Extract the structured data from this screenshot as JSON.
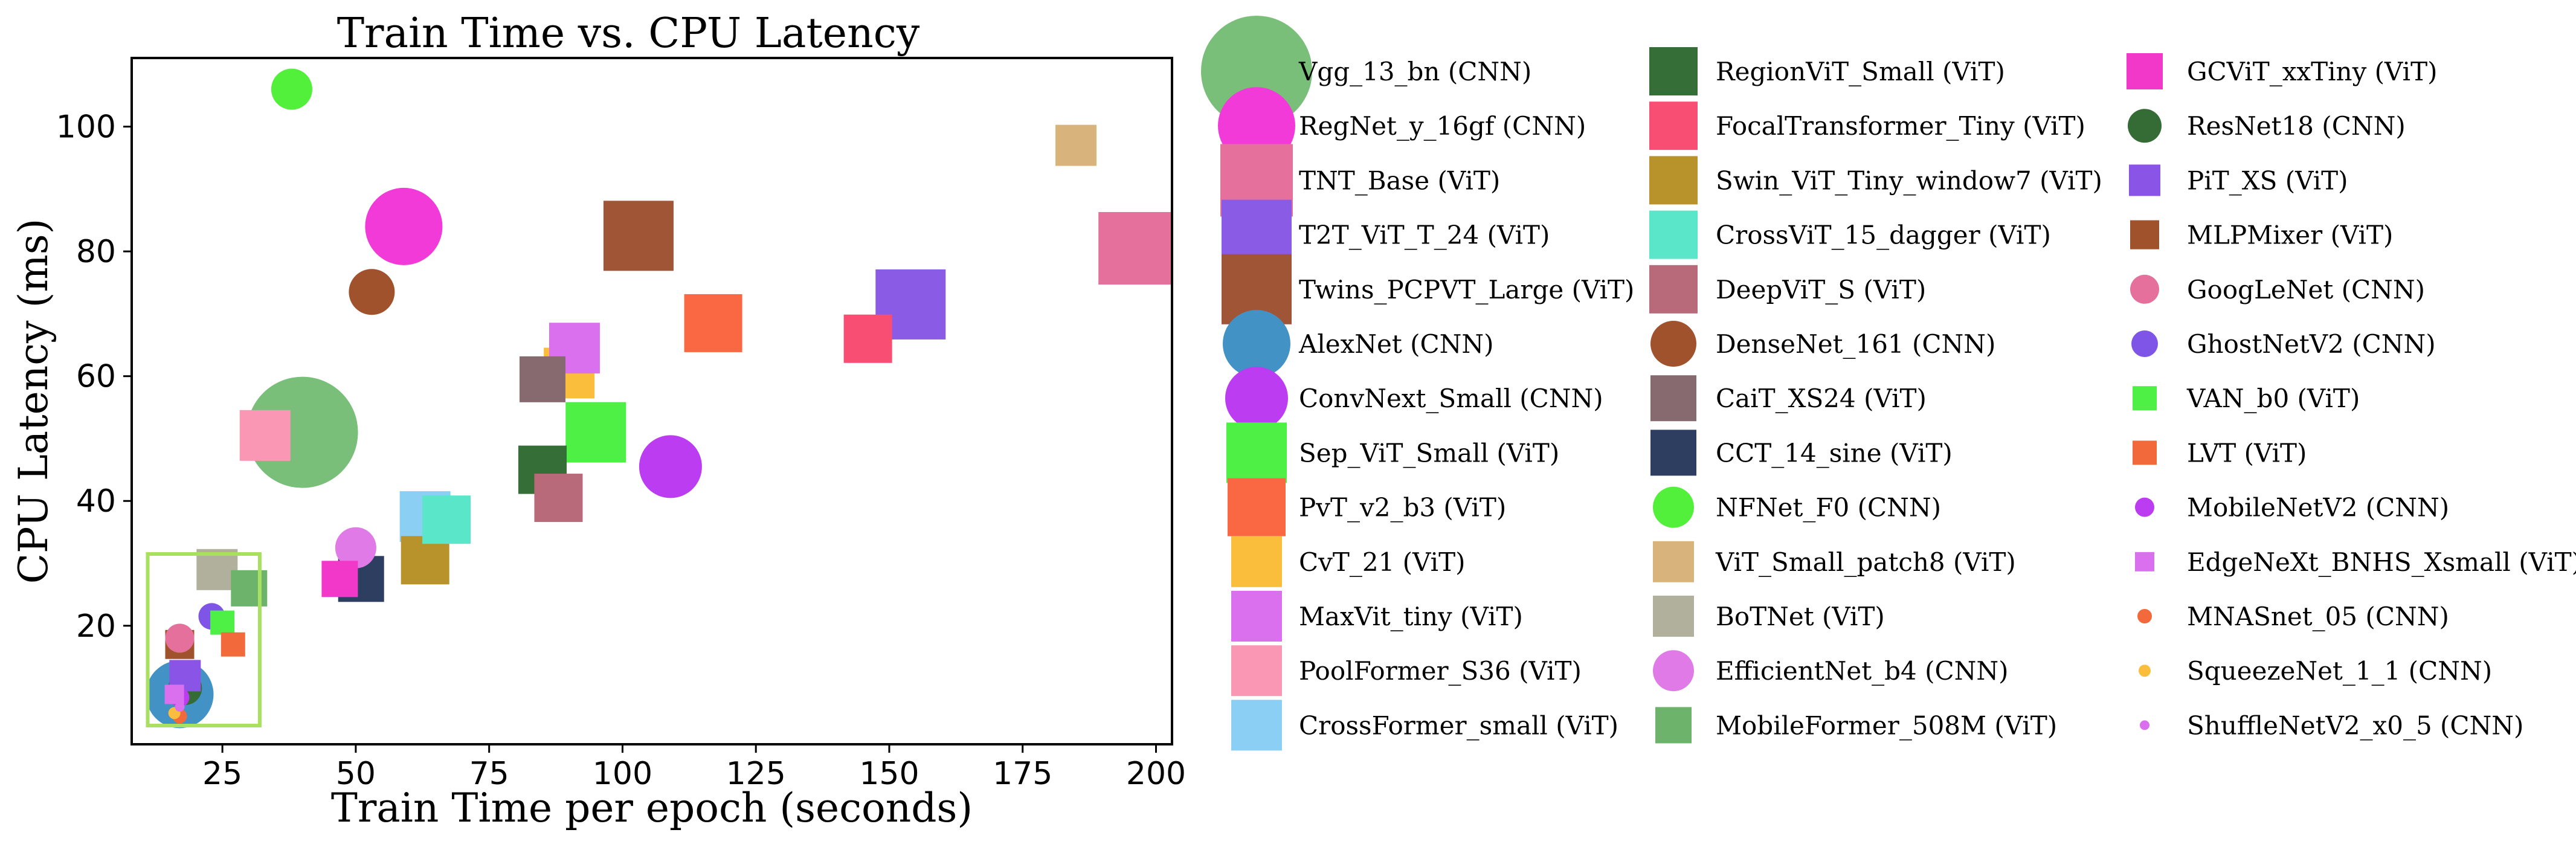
{
  "chart_data": {
    "type": "scatter",
    "title": "Train Time vs. CPU Latency",
    "xlabel": "Train Time per epoch (seconds)",
    "ylabel": "CPU Latency (ms)",
    "xlim": [
      8,
      203
    ],
    "ylim": [
      1,
      111
    ],
    "xticks": [
      25,
      50,
      75,
      100,
      125,
      150,
      175,
      200
    ],
    "yticks": [
      20,
      40,
      60,
      80,
      100
    ],
    "grid": false,
    "legend_position": "right, outside plot, 3 columns",
    "highlight_box": {
      "x": [
        11,
        32
      ],
      "y": [
        4,
        31.5
      ],
      "color": "#a8e05f"
    },
    "series": [
      {
        "name": "Vgg_13_bn (CNN)",
        "marker": "circle",
        "color": "#79bf79",
        "size": 4.6,
        "x": 40,
        "y": 51
      },
      {
        "name": "RegNet_y_16gf (CNN)",
        "marker": "circle",
        "color": "#f23ad8",
        "size": 3.2,
        "x": 59,
        "y": 84
      },
      {
        "name": "TNT_Base (ViT)",
        "marker": "square",
        "color": "#e5709b",
        "size": 3.0,
        "x": 196,
        "y": 80.5
      },
      {
        "name": "T2T_ViT_T_24 (ViT)",
        "marker": "square",
        "color": "#8a5ce6",
        "size": 2.9,
        "x": 154,
        "y": 71.5
      },
      {
        "name": "Twins_PCPVT_Large (ViT)",
        "marker": "square",
        "color": "#a05636",
        "size": 2.9,
        "x": 103,
        "y": 82.5
      },
      {
        "name": "AlexNet (CNN)",
        "marker": "circle",
        "color": "#4292c6",
        "size": 2.8,
        "x": 17,
        "y": 9
      },
      {
        "name": "ConvNext_Small (CNN)",
        "marker": "circle",
        "color": "#bb3cf1",
        "size": 2.6,
        "x": 109,
        "y": 45.5
      },
      {
        "name": "Sep_ViT_Small (ViT)",
        "marker": "square",
        "color": "#4ef046",
        "size": 2.5,
        "x": 95,
        "y": 51
      },
      {
        "name": "PvT_v2_b3 (ViT)",
        "marker": "square",
        "color": "#fa6843",
        "size": 2.4,
        "x": 117,
        "y": 68.5
      },
      {
        "name": "CvT_21 (ViT)",
        "marker": "square",
        "color": "#fbbe3c",
        "size": 2.1,
        "x": 90,
        "y": 60.5
      },
      {
        "name": "MaxVit_tiny (ViT)",
        "marker": "square",
        "color": "#da70ee",
        "size": 2.1,
        "x": 91,
        "y": 64.5
      },
      {
        "name": "PoolFormer_S36 (ViT)",
        "marker": "square",
        "color": "#fa97b5",
        "size": 2.1,
        "x": 33,
        "y": 50.5
      },
      {
        "name": "CrossFormer_small (ViT)",
        "marker": "square",
        "color": "#8ccff4",
        "size": 2.1,
        "x": 63,
        "y": 37.5
      },
      {
        "name": "RegionViT_Small (ViT)",
        "marker": "square",
        "color": "#356e37",
        "size": 2.0,
        "x": 85,
        "y": 45
      },
      {
        "name": "FocalTransformer_Tiny (ViT)",
        "marker": "square",
        "color": "#f84e74",
        "size": 2.0,
        "x": 146,
        "y": 66
      },
      {
        "name": "Swin_ViT_Tiny_window7 (ViT)",
        "marker": "square",
        "color": "#b8922b",
        "size": 2.0,
        "x": 63,
        "y": 30.5
      },
      {
        "name": "CrossViT_15_dagger (ViT)",
        "marker": "square",
        "color": "#5ae6c8",
        "size": 2.0,
        "x": 67,
        "y": 37
      },
      {
        "name": "DeepViT_S (ViT)",
        "marker": "square",
        "color": "#b86a7a",
        "size": 2.0,
        "x": 88,
        "y": 40.5
      },
      {
        "name": "DenseNet_161 (CNN)",
        "marker": "circle",
        "color": "#a0522d",
        "size": 1.9,
        "x": 53,
        "y": 73.5
      },
      {
        "name": "CaiT_XS24 (ViT)",
        "marker": "square",
        "color": "#866a70",
        "size": 1.9,
        "x": 85,
        "y": 59.5
      },
      {
        "name": "CCT_14_sine (ViT)",
        "marker": "square",
        "color": "#2d3e60",
        "size": 1.9,
        "x": 51,
        "y": 27.5
      },
      {
        "name": "NFNet_F0 (CNN)",
        "marker": "circle",
        "color": "#52ef3b",
        "size": 1.7,
        "x": 38,
        "y": 106
      },
      {
        "name": "ViT_Small_patch8 (ViT)",
        "marker": "square",
        "color": "#d8b47c",
        "size": 1.7,
        "x": 185,
        "y": 97
      },
      {
        "name": "BoTNet (ViT)",
        "marker": "square",
        "color": "#b0b09c",
        "size": 1.7,
        "x": 24,
        "y": 29
      },
      {
        "name": "EfficientNet_b4 (CNN)",
        "marker": "circle",
        "color": "#e07ae6",
        "size": 1.7,
        "x": 50,
        "y": 32.5
      },
      {
        "name": "MobileFormer_508M (ViT)",
        "marker": "square",
        "color": "#6db36c",
        "size": 1.5,
        "x": 30,
        "y": 26
      },
      {
        "name": "GCViT_xxTiny (ViT)",
        "marker": "square",
        "color": "#f238c8",
        "size": 1.5,
        "x": 47,
        "y": 27.5
      },
      {
        "name": "ResNet18 (CNN)",
        "marker": "circle",
        "color": "#356b35",
        "size": 1.4,
        "x": 18,
        "y": 10
      },
      {
        "name": "PiT_XS (ViT)",
        "marker": "square",
        "color": "#8a55e6",
        "size": 1.3,
        "x": 18,
        "y": 12
      },
      {
        "name": "MLPMixer (ViT)",
        "marker": "square",
        "color": "#a0522d",
        "size": 1.2,
        "x": 17,
        "y": 17
      },
      {
        "name": "GoogLeNet (CNN)",
        "marker": "circle",
        "color": "#e5709b",
        "size": 1.2,
        "x": 17,
        "y": 18
      },
      {
        "name": "GhostNetV2 (CNN)",
        "marker": "circle",
        "color": "#7e55e6",
        "size": 1.1,
        "x": 23,
        "y": 21.5
      },
      {
        "name": "VAN_b0 (ViT)",
        "marker": "square",
        "color": "#4ef046",
        "size": 1.0,
        "x": 25,
        "y": 20.5
      },
      {
        "name": "LVT (ViT)",
        "marker": "square",
        "color": "#f26a3c",
        "size": 1.0,
        "x": 27,
        "y": 17
      },
      {
        "name": "MobileNetV2 (CNN)",
        "marker": "circle",
        "color": "#bb3cf1",
        "size": 0.8,
        "x": 17,
        "y": 8.5
      },
      {
        "name": "EdgeNeXt_BNHS_Xsmall (ViT)",
        "marker": "square",
        "color": "#da70ee",
        "size": 0.8,
        "x": 16,
        "y": 9
      },
      {
        "name": "MNASnet_05 (CNN)",
        "marker": "circle",
        "color": "#f26a3c",
        "size": 0.6,
        "x": 17,
        "y": 5.5
      },
      {
        "name": "SqueezeNet_1_1 (CNN)",
        "marker": "circle",
        "color": "#fbbe3c",
        "size": 0.5,
        "x": 16,
        "y": 6
      },
      {
        "name": "ShuffleNetV2_x0_5 (CNN)",
        "marker": "circle",
        "color": "#da70ee",
        "size": 0.4,
        "x": 17,
        "y": 7
      }
    ]
  }
}
